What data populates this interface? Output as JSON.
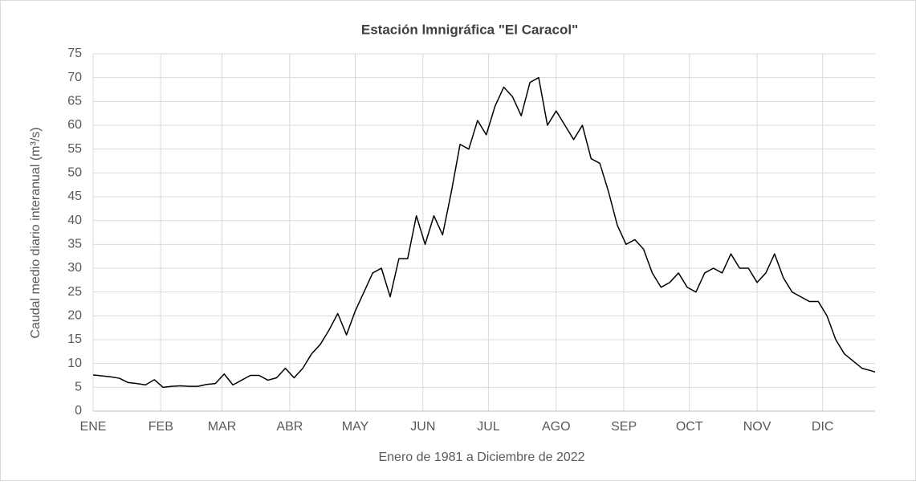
{
  "chart_data": {
    "type": "line",
    "title": "Estación lmnigráfica \"El Caracol\"",
    "xlabel": "Enero de 1981 a Diciembre de 2022",
    "ylabel": "Caudal medio diario interanual (m³/s)",
    "x": [
      1,
      5,
      9,
      13,
      17,
      21,
      25,
      29,
      33,
      37,
      41,
      45,
      49,
      53,
      57,
      61,
      65,
      69,
      73,
      77,
      81,
      85,
      89,
      93,
      97,
      101,
      105,
      109,
      113,
      117,
      121,
      125,
      129,
      133,
      137,
      141,
      145,
      149,
      153,
      157,
      161,
      165,
      169,
      173,
      177,
      181,
      185,
      189,
      193,
      197,
      201,
      205,
      209,
      213,
      217,
      221,
      225,
      229,
      233,
      237,
      241,
      245,
      249,
      253,
      257,
      261,
      265,
      269,
      273,
      277,
      281,
      285,
      289,
      293,
      297,
      301,
      305,
      309,
      313,
      317,
      321,
      325,
      329,
      333,
      337,
      341,
      345,
      349,
      353,
      357,
      359
    ],
    "series": [
      {
        "name": "Caudal",
        "color": "#000000",
        "values": [
          7.6,
          7.4,
          7.2,
          6.9,
          6.0,
          5.8,
          5.5,
          6.6,
          5.0,
          5.2,
          5.3,
          5.2,
          5.2,
          5.6,
          5.8,
          7.8,
          5.5,
          6.5,
          7.5,
          7.5,
          6.5,
          7.0,
          9.0,
          7.0,
          9.0,
          12,
          14,
          17,
          20.5,
          16,
          21,
          25,
          29,
          30,
          24,
          32,
          32,
          41,
          35,
          41,
          37,
          46,
          56,
          55,
          61,
          58,
          64,
          68,
          66,
          62,
          69,
          70,
          60,
          63,
          60,
          57,
          60,
          53,
          52,
          46,
          39,
          35,
          36,
          34,
          29,
          26,
          27,
          29,
          26,
          25,
          29,
          30,
          29,
          33,
          30,
          30,
          27,
          29,
          33,
          28,
          25,
          24,
          23,
          23,
          20,
          15,
          12,
          10.5,
          9,
          8.5,
          8.2
        ]
      }
    ],
    "xlim": [
      1,
      359
    ],
    "xticks": [
      {
        "value": 1,
        "label": "ENE"
      },
      {
        "value": 32,
        "label": "FEB"
      },
      {
        "value": 60,
        "label": "MAR"
      },
      {
        "value": 91,
        "label": "ABR"
      },
      {
        "value": 121,
        "label": "MAY"
      },
      {
        "value": 152,
        "label": "JUN"
      },
      {
        "value": 182,
        "label": "JUL"
      },
      {
        "value": 213,
        "label": "AGO"
      },
      {
        "value": 244,
        "label": "SEP"
      },
      {
        "value": 274,
        "label": "OCT"
      },
      {
        "value": 305,
        "label": "NOV"
      },
      {
        "value": 335,
        "label": "DIC"
      }
    ],
    "ylim": [
      0,
      75
    ],
    "yticks": [
      0,
      5,
      10,
      15,
      20,
      25,
      30,
      35,
      40,
      45,
      50,
      55,
      60,
      65,
      70,
      75
    ],
    "grid": true
  }
}
